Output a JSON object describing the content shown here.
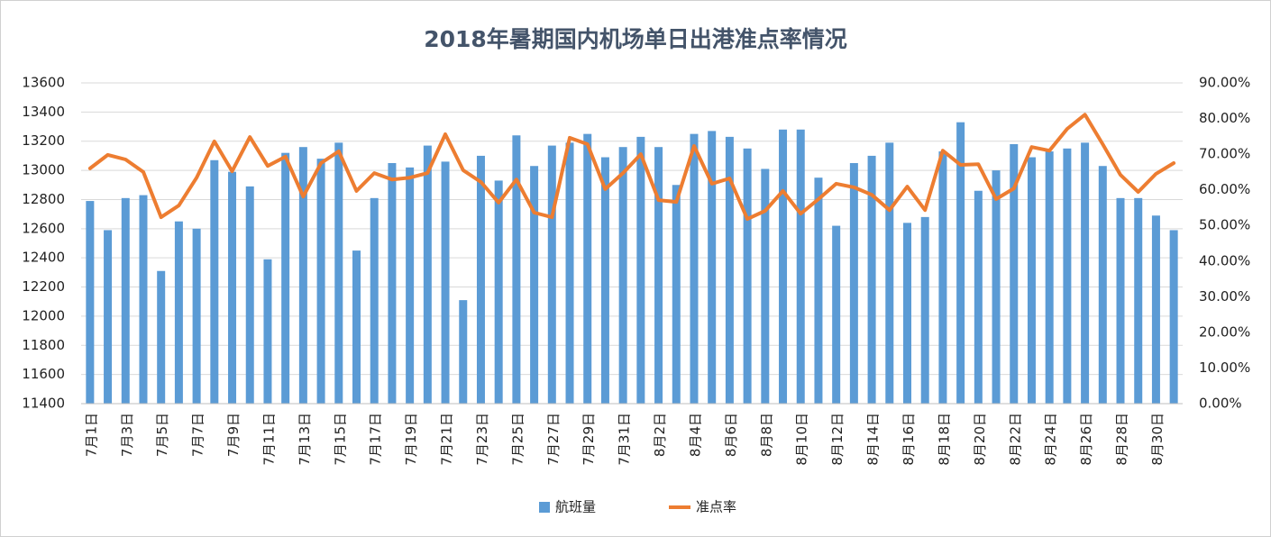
{
  "chart_data": {
    "type": "bar_line",
    "title": "2018年暑期国内机场单日出港准点率情况",
    "categories": [
      "7月1日",
      null,
      "7月3日",
      null,
      "7月5日",
      null,
      "7月7日",
      null,
      "7月9日",
      null,
      "7月11日",
      null,
      "7月13日",
      null,
      "7月15日",
      null,
      "7月17日",
      null,
      "7月19日",
      null,
      "7月21日",
      null,
      "7月23日",
      null,
      "7月25日",
      null,
      "7月27日",
      null,
      "7月29日",
      null,
      "7月31日",
      null,
      "8月2日",
      null,
      "8月4日",
      null,
      "8月6日",
      null,
      "8月8日",
      null,
      "8月10日",
      null,
      "8月12日",
      null,
      "8月14日",
      null,
      "8月16日",
      null,
      "8月18日",
      null,
      "8月20日",
      null,
      "8月22日",
      null,
      "8月24日",
      null,
      "8月26日",
      null,
      "8月28日",
      null,
      "8月30日",
      null
    ],
    "series": [
      {
        "name": "航班量",
        "color": "#5b9bd5",
        "type": "bar",
        "values": [
          12790,
          12590,
          12810,
          12830,
          12310,
          12650,
          12600,
          13070,
          12990,
          12890,
          12390,
          13120,
          13160,
          13080,
          13190,
          12450,
          12810,
          13050,
          13020,
          13170,
          13060,
          12110,
          13100,
          12930,
          13240,
          13030,
          13170,
          13190,
          13250,
          13090,
          13160,
          13230,
          13160,
          12900,
          13250,
          13270,
          13230,
          13150,
          13010,
          13280,
          13280,
          12950,
          12620,
          13050,
          13100,
          13190,
          12640,
          12680,
          13130,
          13330,
          12860,
          13000,
          13180,
          13090,
          13130,
          13150,
          13190,
          13030,
          12810,
          12810,
          12690,
          12590
        ]
      },
      {
        "name": "准点率",
        "color": "#ed7d31",
        "type": "line",
        "axis": "y2",
        "values": [
          66,
          69.8,
          68.5,
          65,
          52.3,
          55.6,
          63.4,
          73.6,
          65.2,
          74.8,
          66.7,
          69.3,
          58.1,
          67.5,
          70.8,
          59.7,
          64.7,
          62.9,
          63.4,
          64.7,
          75.6,
          65.5,
          62.2,
          56.4,
          62.9,
          53.6,
          52.3,
          74.6,
          72.8,
          60.2,
          64.7,
          70,
          57.1,
          56.6,
          72.3,
          61.7,
          63.2,
          51.8,
          54.1,
          59.7,
          53.3,
          57.4,
          61.7,
          60.7,
          58.6,
          54.3,
          60.9,
          54.3,
          71,
          67,
          67.2,
          57.4,
          60.4,
          72,
          71,
          77.1,
          81.1,
          72.8,
          64.2,
          59.4,
          64.5,
          67.5
        ]
      }
    ],
    "ylim": [
      11400,
      13600
    ],
    "yticks": [
      11400,
      11600,
      11800,
      12000,
      12200,
      12400,
      12600,
      12800,
      13000,
      13200,
      13400,
      13600
    ],
    "y2lim": [
      0,
      90
    ],
    "y2ticks": [
      {
        "value": 0,
        "label": "0.00%"
      },
      {
        "value": 10,
        "label": "10.00%"
      },
      {
        "value": 20,
        "label": "20.00%"
      },
      {
        "value": 30,
        "label": "30.00%"
      },
      {
        "value": 40,
        "label": "40.00%"
      },
      {
        "value": 50,
        "label": "50.00%"
      },
      {
        "value": 60,
        "label": "60.00%"
      },
      {
        "value": 70,
        "label": "70.00%"
      },
      {
        "value": 80,
        "label": "80.00%"
      },
      {
        "value": 90,
        "label": "90.00%"
      }
    ],
    "grid": true,
    "legend": "bottom"
  }
}
